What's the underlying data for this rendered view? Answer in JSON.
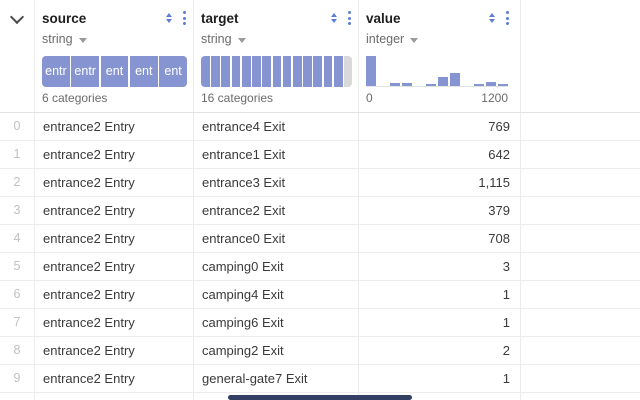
{
  "panel": {
    "collapse_icon": "chevron-down"
  },
  "columns": [
    {
      "name": "source",
      "type": "string",
      "caption": "6 categories",
      "viz": "categorical-bar",
      "segments": [
        "entr",
        "entr",
        "ent",
        "ent",
        "ent"
      ],
      "other_segment": false
    },
    {
      "name": "target",
      "type": "string",
      "caption": "16 categories",
      "viz": "categorical-bar",
      "segments": [
        "",
        "",
        "",
        "",
        "",
        "",
        "",
        "",
        "",
        "",
        "",
        "",
        "",
        ""
      ],
      "other_segment": true
    },
    {
      "name": "value",
      "type": "integer",
      "viz": "histogram",
      "axis_min": "0",
      "axis_max": "1200",
      "bins_percent": [
        100,
        0,
        10,
        10,
        0,
        6,
        30,
        43,
        0,
        6,
        15,
        6
      ]
    }
  ],
  "rows": [
    {
      "index": "0",
      "source": "entrance2 Entry",
      "target": "entrance4 Exit",
      "value": "769"
    },
    {
      "index": "1",
      "source": "entrance2 Entry",
      "target": "entrance1 Exit",
      "value": "642"
    },
    {
      "index": "2",
      "source": "entrance2 Entry",
      "target": "entrance3 Exit",
      "value": "1,115"
    },
    {
      "index": "3",
      "source": "entrance2 Entry",
      "target": "entrance2 Exit",
      "value": "379"
    },
    {
      "index": "4",
      "source": "entrance2 Entry",
      "target": "entrance0 Exit",
      "value": "708"
    },
    {
      "index": "5",
      "source": "entrance2 Entry",
      "target": "camping0 Exit",
      "value": "3"
    },
    {
      "index": "6",
      "source": "entrance2 Entry",
      "target": "camping4 Exit",
      "value": "1"
    },
    {
      "index": "7",
      "source": "entrance2 Entry",
      "target": "camping6 Exit",
      "value": "1"
    },
    {
      "index": "8",
      "source": "entrance2 Entry",
      "target": "camping2 Exit",
      "value": "2"
    },
    {
      "index": "9",
      "source": "entrance2 Entry",
      "target": "general-gate7 Exit",
      "value": "1"
    }
  ],
  "colors": {
    "accent_periwinkle": "#8695d2",
    "control_blue": "#5b7ed7",
    "other_segment_gray": "#d9d9d9",
    "scrollbar_navy": "#333f63",
    "row_border": "#ececec",
    "text_dark": "#1d1d1d",
    "text_muted": "#6b6b6b",
    "row_number_gray": "#c0c0c0"
  }
}
